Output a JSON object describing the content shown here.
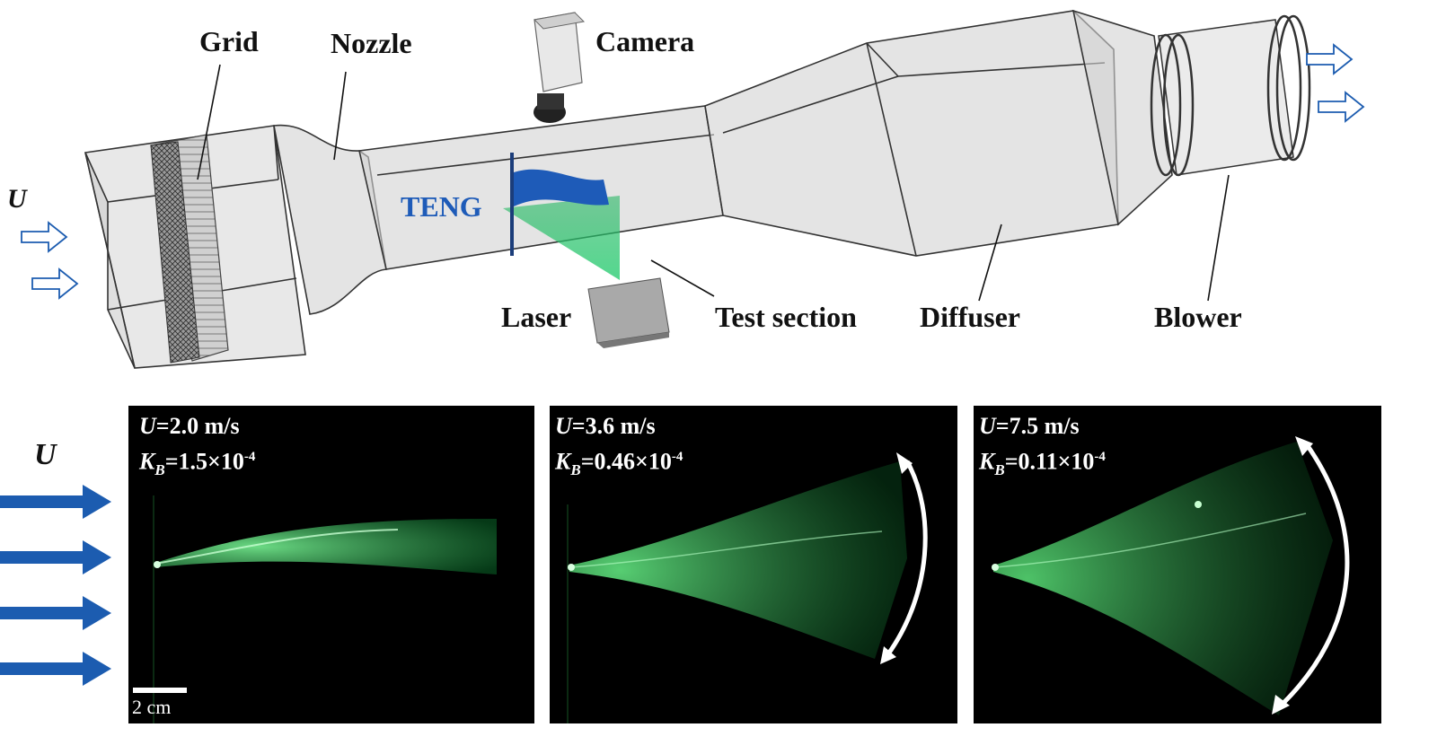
{
  "upstream_symbol": "U",
  "labels": {
    "grid": "Grid",
    "nozzle": "Nozzle",
    "camera": "Camera",
    "teng": "TENG",
    "laser": "Laser",
    "test_section": "Test section",
    "diffuser": "Diffuser",
    "blower": "Blower"
  },
  "bottom_flow_symbol": "U",
  "scale_bar": "2 cm",
  "panels": [
    {
      "u": "2.0",
      "u_unit": "m/s",
      "kb_mantissa": "1.5",
      "kb_exp": "-4"
    },
    {
      "u": "3.6",
      "u_unit": "m/s",
      "kb_mantissa": "0.46",
      "kb_exp": "-4"
    },
    {
      "u": "7.5",
      "u_unit": "m/s",
      "kb_mantissa": "0.11",
      "kb_exp": "-4"
    }
  ],
  "colors": {
    "arrow_blue": "#1c5cb0",
    "teng_blue": "#1e5bb8",
    "laser_green": "#22c55e",
    "tunnel_fill": "#d4d4d4",
    "divider": "#aaaaaa"
  }
}
